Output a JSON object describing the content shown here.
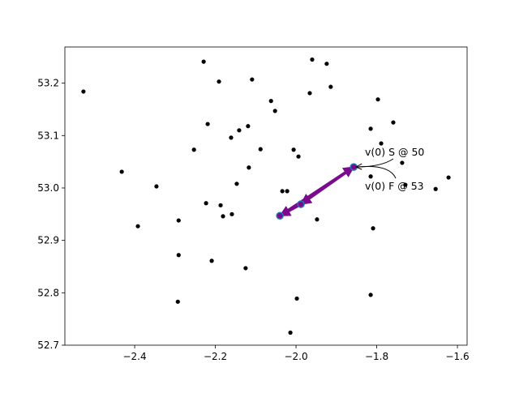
{
  "chart_data": {
    "type": "scatter",
    "title": "",
    "xlabel": "",
    "ylabel": "",
    "xlim": [
      -2.573,
      -1.576
    ],
    "ylim": [
      52.7,
      53.269
    ],
    "grid": false,
    "xticks": [
      -2.4,
      -2.2,
      -2.0,
      -1.8,
      -1.6
    ],
    "xtick_labels": [
      "−2.4",
      "−2.2",
      "−2.0",
      "−1.8",
      "−1.6"
    ],
    "yticks": [
      52.7,
      52.8,
      52.9,
      53.0,
      53.1,
      53.2
    ],
    "ytick_labels": [
      "52.7",
      "52.8",
      "52.9",
      "53.0",
      "53.1",
      "53.2"
    ],
    "points": [
      [
        -2.527,
        53.184
      ],
      [
        -2.229,
        53.241
      ],
      [
        -2.191,
        53.203
      ],
      [
        -2.109,
        53.207
      ],
      [
        -1.96,
        53.245
      ],
      [
        -1.924,
        53.237
      ],
      [
        -1.914,
        53.193
      ],
      [
        -1.966,
        53.181
      ],
      [
        -2.062,
        53.166
      ],
      [
        -2.052,
        53.147
      ],
      [
        -1.797,
        53.169
      ],
      [
        -2.219,
        53.122
      ],
      [
        -1.759,
        53.125
      ],
      [
        -1.815,
        53.113
      ],
      [
        -2.119,
        53.118
      ],
      [
        -2.141,
        53.11
      ],
      [
        -2.161,
        53.096
      ],
      [
        -2.253,
        53.073
      ],
      [
        -2.088,
        53.074
      ],
      [
        -2.006,
        53.073
      ],
      [
        -1.994,
        53.06
      ],
      [
        -1.789,
        53.085
      ],
      [
        -2.432,
        53.031
      ],
      [
        -2.346,
        53.003
      ],
      [
        -2.117,
        53.039
      ],
      [
        -2.147,
        53.008
      ],
      [
        -1.815,
        53.022
      ],
      [
        -1.737,
        53.048
      ],
      [
        -1.622,
        53.02
      ],
      [
        -1.654,
        52.998
      ],
      [
        -2.034,
        52.994
      ],
      [
        -2.022,
        52.994
      ],
      [
        -2.223,
        52.971
      ],
      [
        -2.187,
        52.967
      ],
      [
        -2.159,
        52.95
      ],
      [
        -2.181,
        52.946
      ],
      [
        -1.948,
        52.94
      ],
      [
        -2.392,
        52.927
      ],
      [
        -2.291,
        52.938
      ],
      [
        -1.809,
        52.923
      ],
      [
        -2.291,
        52.872
      ],
      [
        -2.209,
        52.861
      ],
      [
        -2.125,
        52.847
      ],
      [
        -2.293,
        52.783
      ],
      [
        -1.998,
        52.789
      ],
      [
        -1.815,
        52.796
      ],
      [
        -2.014,
        52.724
      ],
      [
        -1.729,
        53.006
      ]
    ],
    "point_color": "#000000",
    "highlighted_points": [
      [
        -1.857,
        53.04
      ],
      [
        -1.988,
        52.969
      ],
      [
        -2.04,
        52.947
      ]
    ],
    "highlight_fill": "#7b0a8f",
    "highlight_edge": "#1f77b4",
    "arrows": [
      {
        "from": [
          -2.04,
          52.947
        ],
        "to": [
          -1.857,
          53.04
        ]
      },
      {
        "from": [
          -1.857,
          53.04
        ],
        "to": [
          -1.988,
          52.969
        ]
      },
      {
        "from": [
          -1.988,
          52.969
        ],
        "to": [
          -2.04,
          52.947
        ]
      }
    ],
    "arrow_color": "#7b0a8f",
    "annotations": [
      {
        "text": "v(0) S @ 50",
        "target": [
          -1.857,
          53.04
        ]
      },
      {
        "text": "v(0) F @ 53",
        "target": [
          -1.857,
          53.04
        ]
      }
    ]
  }
}
